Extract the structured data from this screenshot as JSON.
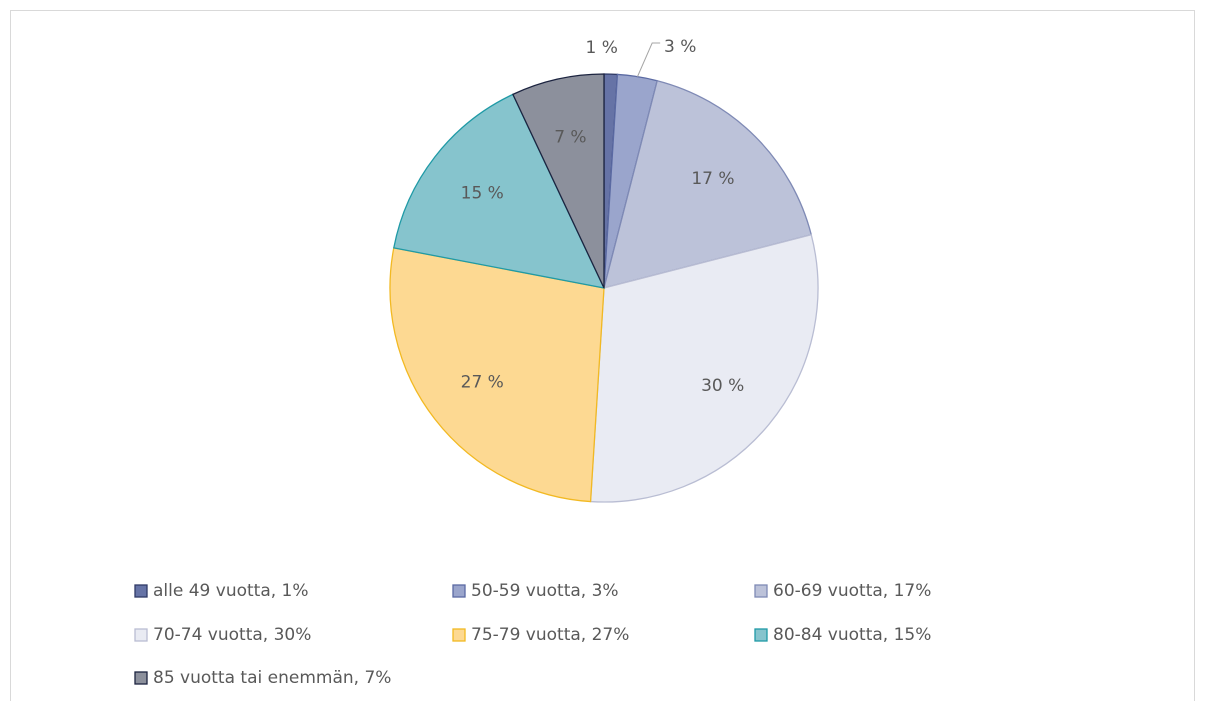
{
  "chart_data": {
    "type": "pie",
    "categories": [
      "alle 49 vuotta, 1%",
      "50-59 vuotta, 3%",
      "60-69 vuotta, 17%",
      "70-74 vuotta, 30%",
      "75-79 vuotta, 27%",
      "80-84 vuotta, 15%",
      "85 vuotta tai enemmän, 7%"
    ],
    "values": [
      1,
      3,
      17,
      30,
      27,
      15,
      7
    ],
    "value_labels": [
      "1 %",
      "3 %",
      "17 %",
      "30 %",
      "27 %",
      "15 %",
      "7 %"
    ],
    "colors": [
      "#6673a6",
      "#9aa5cc",
      "#bcc2d9",
      "#e9ebf3",
      "#fdd992",
      "#86c4cd",
      "#8c909c"
    ],
    "legend": "bottom"
  }
}
